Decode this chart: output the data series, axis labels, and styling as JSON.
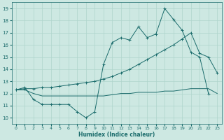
{
  "title": "",
  "xlabel": "Humidex (Indice chaleur)",
  "xlim": [
    -0.5,
    23.5
  ],
  "ylim": [
    9.5,
    19.5
  ],
  "xticks": [
    0,
    1,
    2,
    3,
    4,
    5,
    6,
    7,
    8,
    9,
    10,
    11,
    12,
    13,
    14,
    15,
    16,
    17,
    18,
    19,
    20,
    21,
    22,
    23
  ],
  "yticks": [
    10,
    11,
    12,
    13,
    14,
    15,
    16,
    17,
    18,
    19
  ],
  "bg_color": "#cde8e2",
  "grid_color": "#aed4cc",
  "line_color": "#1a6b6b",
  "line1_x": [
    0,
    1,
    2,
    3,
    4,
    5,
    6,
    7,
    8,
    9,
    10,
    11,
    12,
    13,
    14,
    15,
    16,
    17,
    18,
    19,
    20,
    21,
    22
  ],
  "line1_y": [
    12.3,
    12.5,
    11.5,
    11.1,
    11.1,
    11.1,
    11.1,
    10.5,
    10.0,
    10.5,
    14.4,
    16.2,
    16.6,
    16.4,
    17.5,
    16.6,
    16.9,
    19.0,
    18.1,
    17.2,
    15.4,
    15.0,
    12.0
  ],
  "line2_x": [
    0,
    1,
    2,
    3,
    4,
    5,
    6,
    7,
    8,
    9,
    10,
    11,
    12,
    13,
    14,
    15,
    16,
    17,
    18,
    19,
    20,
    21,
    22,
    23
  ],
  "line2_y": [
    12.3,
    12.4,
    12.4,
    12.5,
    12.5,
    12.6,
    12.7,
    12.8,
    12.9,
    13.0,
    13.2,
    13.4,
    13.7,
    14.0,
    14.4,
    14.8,
    15.2,
    15.6,
    16.0,
    16.5,
    17.0,
    15.3,
    15.0,
    13.7
  ],
  "line3_x": [
    0,
    1,
    2,
    3,
    4,
    5,
    6,
    7,
    8,
    9,
    10,
    11,
    12,
    13,
    14,
    15,
    16,
    17,
    18,
    19,
    20,
    21,
    22,
    23
  ],
  "line3_y": [
    12.3,
    12.3,
    12.0,
    11.8,
    11.8,
    11.8,
    11.8,
    11.8,
    11.8,
    11.8,
    11.8,
    11.9,
    12.0,
    12.0,
    12.1,
    12.1,
    12.1,
    12.2,
    12.2,
    12.3,
    12.4,
    12.4,
    12.4,
    12.0
  ]
}
